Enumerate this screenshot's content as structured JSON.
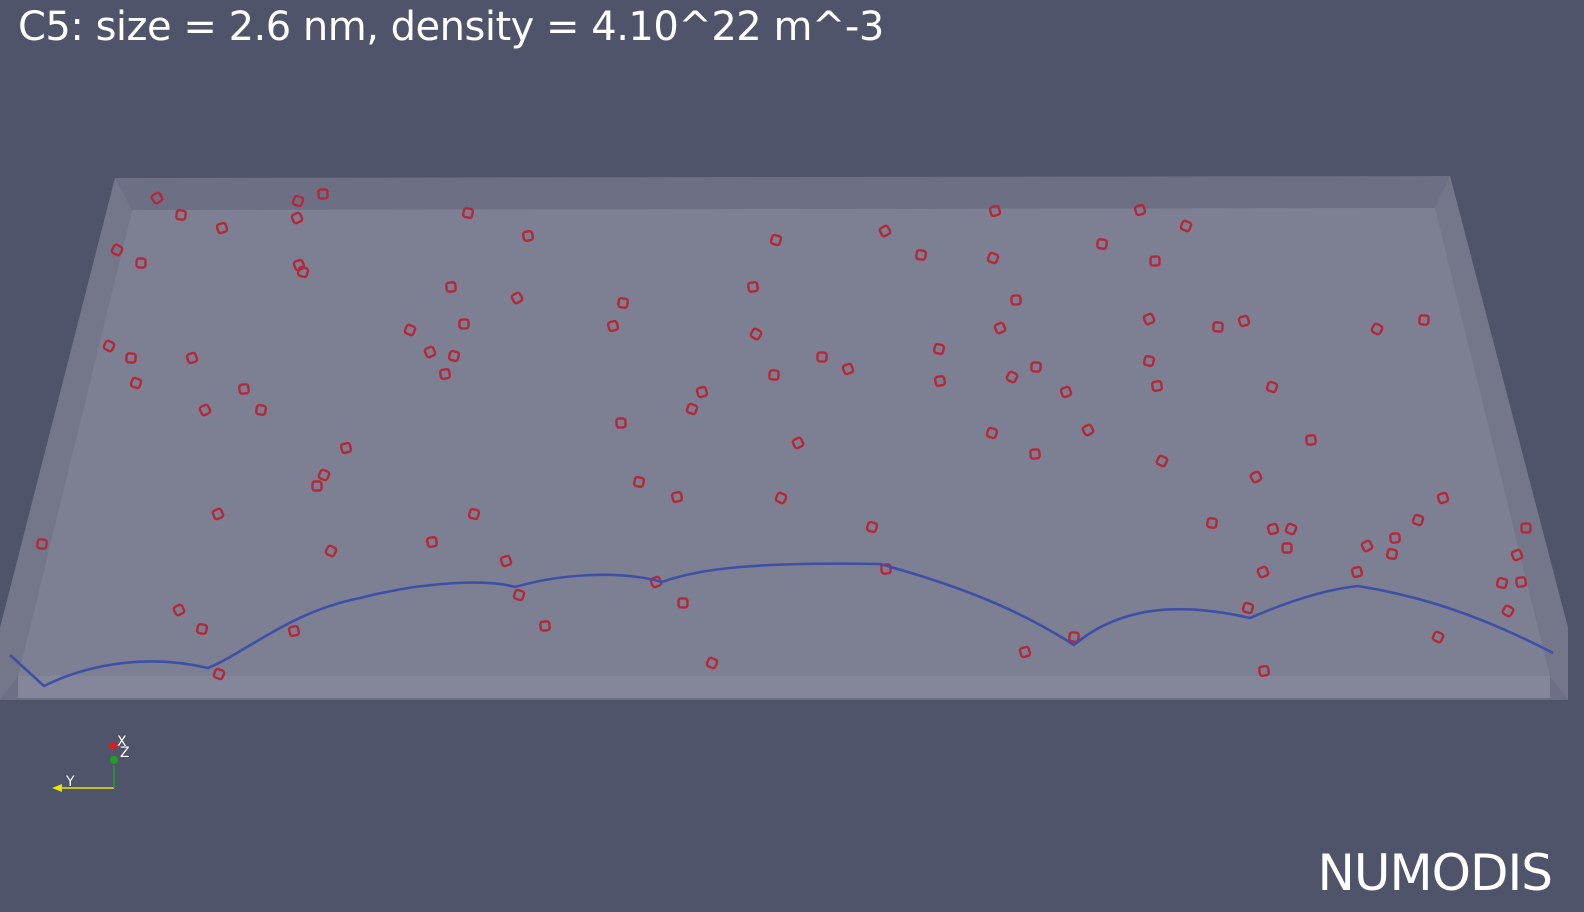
{
  "title": "C5: size = 2.6 nm, density = 4.10^22 m^-3",
  "brand": "NUMODIS",
  "axes": {
    "x_label": "X",
    "y_label": "Y",
    "z_label": "Z"
  },
  "colors": {
    "background": "#4f546a",
    "box_face": "#7c7f91",
    "box_side": "#8a8c9c",
    "loops": "#b4283a",
    "dislocation": "#3f4fa8",
    "axis_x": "#d02020",
    "axis_y": "#e6e600",
    "axis_z": "#20a020"
  },
  "icons": {
    "axes_triad": "axes-orientation-icon"
  }
}
